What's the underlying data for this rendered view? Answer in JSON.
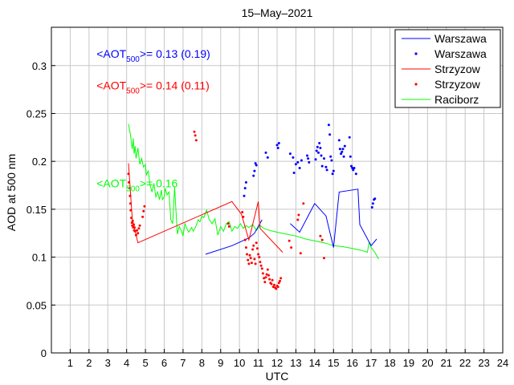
{
  "chart_data": {
    "type": "line",
    "title": "15–May–2021",
    "xlabel": "UTC",
    "ylabel": "AOD at 500 nm",
    "xlim": [
      0,
      24
    ],
    "ylim": [
      0,
      0.34
    ],
    "xticks": [
      1,
      2,
      3,
      4,
      5,
      6,
      7,
      8,
      9,
      10,
      11,
      12,
      13,
      14,
      15,
      16,
      17,
      18,
      19,
      20,
      21,
      22,
      23,
      24
    ],
    "yticks": [
      0,
      0.05,
      0.1,
      0.15,
      0.2,
      0.25,
      0.3
    ],
    "ytick_labels": [
      "0",
      "0.05",
      "0.1",
      "0.15",
      "0.2",
      "0.25",
      "0.3"
    ],
    "grid": true,
    "legend_position": "top-right",
    "legend": [
      {
        "label": "Warszawa",
        "style": "line",
        "color": "#0000ff"
      },
      {
        "label": "Warszawa",
        "style": "dots",
        "color": "#0000ff"
      },
      {
        "label": "Strzyzow",
        "style": "line",
        "color": "#ff0000"
      },
      {
        "label": "Strzyzow",
        "style": "dots",
        "color": "#ff0000"
      },
      {
        "label": "Raciborz",
        "style": "line",
        "color": "#00ff00"
      }
    ],
    "annotations": [
      {
        "prefix": "<AOT",
        "sub": "500",
        "suffix": ">= 0.13 (0.19)",
        "color": "#0000ff",
        "x": 2.4,
        "y": 0.308
      },
      {
        "prefix": "<AOT",
        "sub": "500",
        "suffix": ">= 0.14 (0.11)",
        "color": "#ff0000",
        "x": 2.4,
        "y": 0.275
      },
      {
        "prefix": "<AOT",
        "sub": "500",
        "suffix": ">= 0.16",
        "color": "#00ff00",
        "x": 2.4,
        "y": 0.173
      }
    ],
    "series": [
      {
        "name": "Warszawa",
        "kind": "line",
        "color": "#0000ff",
        "segments": [
          [
            [
              8.2,
              0.103
            ],
            [
              9.6,
              0.112
            ],
            [
              10.5,
              0.12
            ],
            [
              10.8,
              0.125
            ],
            [
              11.2,
              0.139
            ]
          ],
          [
            [
              12.7,
              0.135
            ],
            [
              13.2,
              0.126
            ],
            [
              14.0,
              0.156
            ],
            [
              14.6,
              0.143
            ],
            [
              15.0,
              0.11
            ],
            [
              15.3,
              0.168
            ],
            [
              16.3,
              0.171
            ],
            [
              16.4,
              0.134
            ],
            [
              17.0,
              0.112
            ],
            [
              17.3,
              0.119
            ]
          ]
        ]
      },
      {
        "name": "Warszawa",
        "kind": "dots",
        "color": "#0000ff",
        "points": [
          [
            10.25,
            0.164
          ],
          [
            10.3,
            0.172
          ],
          [
            10.35,
            0.178
          ],
          [
            10.75,
            0.185
          ],
          [
            10.8,
            0.19
          ],
          [
            10.85,
            0.198
          ],
          [
            10.9,
            0.196
          ],
          [
            11.4,
            0.209
          ],
          [
            11.5,
            0.204
          ],
          [
            12.0,
            0.217
          ],
          [
            12.05,
            0.214
          ],
          [
            12.1,
            0.219
          ],
          [
            12.7,
            0.208
          ],
          [
            12.85,
            0.204
          ],
          [
            12.9,
            0.188
          ],
          [
            13.0,
            0.197
          ],
          [
            13.1,
            0.199
          ],
          [
            13.2,
            0.193
          ],
          [
            13.3,
            0.201
          ],
          [
            13.6,
            0.206
          ],
          [
            13.65,
            0.203
          ],
          [
            13.7,
            0.199
          ],
          [
            14.05,
            0.202
          ],
          [
            14.1,
            0.211
          ],
          [
            14.15,
            0.215
          ],
          [
            14.2,
            0.209
          ],
          [
            14.25,
            0.219
          ],
          [
            14.3,
            0.214
          ],
          [
            14.35,
            0.206
          ],
          [
            14.4,
            0.195
          ],
          [
            14.5,
            0.203
          ],
          [
            14.6,
            0.194
          ],
          [
            14.65,
            0.191
          ],
          [
            14.75,
            0.238
          ],
          [
            14.8,
            0.228
          ],
          [
            14.85,
            0.205
          ],
          [
            14.9,
            0.201
          ],
          [
            14.95,
            0.187
          ],
          [
            15.0,
            0.19
          ],
          [
            15.3,
            0.222
          ],
          [
            15.35,
            0.213
          ],
          [
            15.4,
            0.208
          ],
          [
            15.45,
            0.21
          ],
          [
            15.5,
            0.213
          ],
          [
            15.55,
            0.205
          ],
          [
            15.6,
            0.216
          ],
          [
            15.85,
            0.225
          ],
          [
            15.9,
            0.205
          ],
          [
            15.95,
            0.195
          ],
          [
            16.0,
            0.193
          ],
          [
            16.05,
            0.191
          ],
          [
            16.1,
            0.193
          ],
          [
            16.2,
            0.187
          ],
          [
            17.05,
            0.152
          ],
          [
            17.1,
            0.156
          ],
          [
            17.15,
            0.16
          ],
          [
            17.2,
            0.161
          ]
        ]
      },
      {
        "name": "Strzyzow",
        "kind": "line",
        "color": "#ff0000",
        "segments": [
          [
            [
              4.1,
              0.198
            ],
            [
              4.3,
              0.14
            ],
            [
              4.6,
              0.115
            ],
            [
              9.6,
              0.158
            ],
            [
              10.1,
              0.145
            ],
            [
              10.5,
              0.118
            ],
            [
              11.0,
              0.158
            ],
            [
              11.1,
              0.13
            ],
            [
              12.3,
              0.105
            ]
          ]
        ]
      },
      {
        "name": "Strzyzow",
        "kind": "dots",
        "color": "#ff0000",
        "points": [
          [
            4.1,
            0.187
          ],
          [
            4.12,
            0.178
          ],
          [
            4.15,
            0.172
          ],
          [
            4.18,
            0.164
          ],
          [
            4.2,
            0.156
          ],
          [
            4.22,
            0.149
          ],
          [
            4.25,
            0.141
          ],
          [
            4.28,
            0.136
          ],
          [
            4.3,
            0.133
          ],
          [
            4.32,
            0.138
          ],
          [
            4.35,
            0.131
          ],
          [
            4.38,
            0.134
          ],
          [
            4.4,
            0.128
          ],
          [
            4.42,
            0.131
          ],
          [
            4.45,
            0.127
          ],
          [
            4.5,
            0.123
          ],
          [
            4.55,
            0.128
          ],
          [
            4.6,
            0.125
          ],
          [
            4.65,
            0.13
          ],
          [
            4.7,
            0.133
          ],
          [
            4.85,
            0.142
          ],
          [
            4.9,
            0.148
          ],
          [
            4.95,
            0.153
          ],
          [
            7.6,
            0.231
          ],
          [
            7.65,
            0.227
          ],
          [
            7.7,
            0.222
          ],
          [
            9.4,
            0.135
          ],
          [
            9.45,
            0.132
          ],
          [
            10.15,
            0.147
          ],
          [
            10.2,
            0.142
          ],
          [
            10.3,
            0.118
          ],
          [
            10.35,
            0.11
          ],
          [
            10.4,
            0.103
          ],
          [
            10.45,
            0.097
          ],
          [
            10.5,
            0.093
          ],
          [
            10.55,
            0.102
          ],
          [
            10.6,
            0.099
          ],
          [
            10.65,
            0.094
          ],
          [
            10.7,
            0.108
          ],
          [
            10.75,
            0.112
          ],
          [
            10.8,
            0.098
          ],
          [
            10.85,
            0.093
          ],
          [
            10.9,
            0.115
          ],
          [
            10.95,
            0.109
          ],
          [
            11.0,
            0.103
          ],
          [
            11.05,
            0.1
          ],
          [
            11.1,
            0.095
          ],
          [
            11.15,
            0.091
          ],
          [
            11.2,
            0.088
          ],
          [
            11.25,
            0.083
          ],
          [
            11.3,
            0.078
          ],
          [
            11.35,
            0.074
          ],
          [
            11.4,
            0.079
          ],
          [
            11.45,
            0.082
          ],
          [
            11.5,
            0.087
          ],
          [
            11.55,
            0.081
          ],
          [
            11.6,
            0.077
          ],
          [
            11.65,
            0.073
          ],
          [
            11.7,
            0.072
          ],
          [
            11.75,
            0.076
          ],
          [
            11.8,
            0.069
          ],
          [
            11.85,
            0.071
          ],
          [
            11.9,
            0.068
          ],
          [
            11.95,
            0.067
          ],
          [
            12.0,
            0.07
          ],
          [
            12.05,
            0.069
          ],
          [
            12.1,
            0.073
          ],
          [
            12.15,
            0.075
          ],
          [
            12.2,
            0.078
          ],
          [
            12.65,
            0.117
          ],
          [
            12.75,
            0.11
          ],
          [
            13.1,
            0.139
          ],
          [
            13.15,
            0.144
          ],
          [
            13.25,
            0.104
          ],
          [
            13.4,
            0.156
          ],
          [
            14.3,
            0.122
          ],
          [
            14.4,
            0.118
          ],
          [
            14.5,
            0.099
          ]
        ]
      },
      {
        "name": "Raciborz",
        "kind": "line",
        "color": "#00ff00",
        "segments": [
          [
            [
              4.1,
              0.239
            ],
            [
              4.2,
              0.228
            ],
            [
              4.25,
              0.22
            ],
            [
              4.3,
              0.213
            ],
            [
              4.35,
              0.224
            ],
            [
              4.4,
              0.208
            ],
            [
              4.45,
              0.216
            ],
            [
              4.5,
              0.203
            ],
            [
              4.6,
              0.214
            ],
            [
              4.7,
              0.197
            ],
            [
              4.8,
              0.203
            ],
            [
              4.9,
              0.194
            ],
            [
              5.0,
              0.197
            ],
            [
              5.05,
              0.186
            ],
            [
              5.15,
              0.19
            ],
            [
              5.25,
              0.175
            ],
            [
              5.35,
              0.168
            ],
            [
              5.45,
              0.177
            ],
            [
              5.55,
              0.163
            ],
            [
              5.65,
              0.168
            ],
            [
              5.75,
              0.16
            ],
            [
              5.85,
              0.17
            ],
            [
              5.9,
              0.16
            ],
            [
              6.0,
              0.163
            ],
            [
              6.05,
              0.172
            ],
            [
              6.15,
              0.165
            ],
            [
              6.25,
              0.168
            ],
            [
              6.35,
              0.139
            ],
            [
              6.45,
              0.135
            ],
            [
              6.55,
              0.173
            ],
            [
              6.65,
              0.14
            ],
            [
              6.7,
              0.124
            ],
            [
              6.8,
              0.132
            ],
            [
              6.9,
              0.128
            ],
            [
              7.0,
              0.122
            ],
            [
              7.1,
              0.135
            ],
            [
              7.2,
              0.13
            ],
            [
              7.3,
              0.126
            ],
            [
              7.45,
              0.131
            ],
            [
              7.55,
              0.127
            ],
            [
              7.7,
              0.133
            ],
            [
              7.8,
              0.139
            ],
            [
              7.9,
              0.137
            ],
            [
              8.0,
              0.143
            ],
            [
              8.1,
              0.141
            ],
            [
              8.25,
              0.149
            ],
            [
              8.4,
              0.139
            ],
            [
              8.55,
              0.135
            ],
            [
              8.7,
              0.14
            ],
            [
              8.85,
              0.123
            ],
            [
              9.0,
              0.132
            ],
            [
              9.15,
              0.127
            ],
            [
              9.3,
              0.135
            ],
            [
              9.45,
              0.137
            ],
            [
              9.6,
              0.127
            ],
            [
              9.75,
              0.132
            ],
            [
              9.9,
              0.13
            ],
            [
              10.05,
              0.135
            ],
            [
              10.2,
              0.13
            ],
            [
              10.35,
              0.133
            ],
            [
              10.5,
              0.131
            ],
            [
              10.7,
              0.134
            ],
            [
              10.9,
              0.128
            ],
            [
              11.1,
              0.133
            ],
            [
              11.3,
              0.13
            ],
            [
              11.6,
              0.128
            ],
            [
              12.0,
              0.126
            ],
            [
              12.5,
              0.124
            ],
            [
              13.0,
              0.122
            ],
            [
              13.5,
              0.119
            ],
            [
              14.0,
              0.117
            ],
            [
              14.5,
              0.115
            ],
            [
              15.0,
              0.112
            ],
            [
              15.5,
              0.111
            ],
            [
              16.0,
              0.109
            ],
            [
              16.5,
              0.107
            ],
            [
              16.8,
              0.105
            ],
            [
              16.9,
              0.116
            ],
            [
              17.0,
              0.11
            ],
            [
              17.2,
              0.105
            ],
            [
              17.4,
              0.098
            ]
          ]
        ]
      }
    ]
  }
}
